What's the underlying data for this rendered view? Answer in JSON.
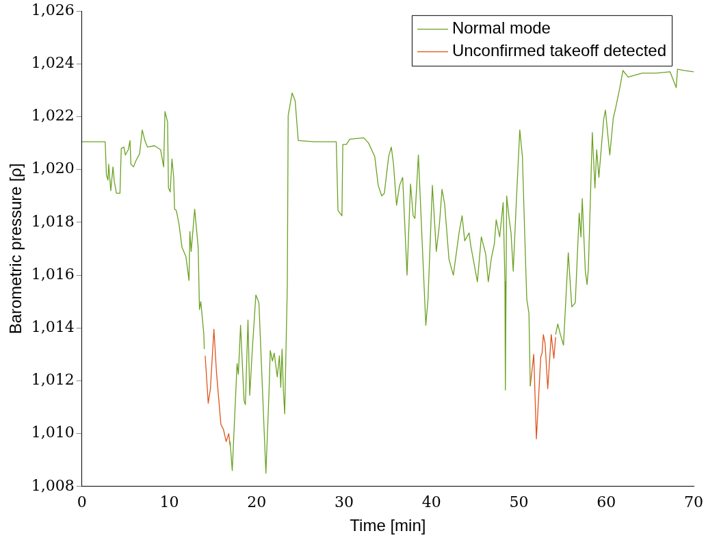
{
  "chart_data": {
    "type": "line",
    "xlabel": "Time [min]",
    "ylabel": "Barometric pressure [ρ]",
    "xlim": [
      0,
      70
    ],
    "xticks": [
      0,
      10,
      20,
      30,
      40,
      50,
      60,
      70
    ],
    "ylim": [
      1008,
      1026
    ],
    "yticks": [
      {
        "value": 1008,
        "label": "1,008"
      },
      {
        "value": 1010,
        "label": "1,010"
      },
      {
        "value": 1012,
        "label": "1,012"
      },
      {
        "value": 1014,
        "label": "1,014"
      },
      {
        "value": 1016,
        "label": "1,016"
      },
      {
        "value": 1018,
        "label": "1,018"
      },
      {
        "value": 1020,
        "label": "1,020"
      },
      {
        "value": 1022,
        "label": "1,022"
      },
      {
        "value": 1024,
        "label": "1,024"
      },
      {
        "value": 1026,
        "label": "1,026"
      }
    ],
    "grid": false,
    "legend": "top right",
    "marker": "none",
    "line_style": "solid",
    "series": [
      {
        "name": "Normal mode",
        "color": "#6aa121",
        "x": [
          0,
          2.66,
          2.8,
          2.98,
          3.06,
          3.3,
          3.55,
          3.7,
          3.95,
          4.35,
          4.5,
          4.8,
          4.97,
          5.3,
          5.5,
          5.6,
          5.9,
          6.2,
          6.6,
          6.9,
          7.2,
          7.5,
          8.3,
          9.0,
          9.35,
          9.5,
          9.8,
          9.9,
          10.1,
          10.3,
          10.5,
          10.6,
          10.8,
          11.1,
          11.45,
          11.9,
          12.25,
          12.35,
          12.5,
          12.9,
          13.3,
          13.45,
          13.6,
          13.95,
          14.0,
          14.05,
          16.95,
          17.2,
          17.75,
          17.9,
          18.15,
          18.55,
          18.7,
          19.0,
          19.2,
          19.5,
          19.9,
          20.25,
          21.05,
          21.4,
          21.55,
          21.8,
          22.0,
          22.35,
          22.6,
          22.75,
          22.9,
          23.05,
          23.2,
          23.5,
          23.6,
          24.05,
          24.4,
          24.75,
          26.6,
          28.6,
          29.1,
          29.3,
          29.75,
          29.85,
          30.25,
          30.65,
          32.25,
          32.8,
          33.5,
          33.9,
          34.3,
          34.6,
          35.1,
          35.4,
          35.65,
          36.0,
          36.35,
          36.7,
          37.2,
          37.6,
          37.9,
          38.1,
          38.5,
          38.8,
          39.35,
          39.6,
          40.1,
          40.55,
          40.9,
          41.2,
          41.5,
          42.0,
          42.5,
          42.7,
          43.15,
          43.5,
          43.8,
          44.3,
          44.5,
          45.25,
          45.7,
          46.2,
          46.5,
          46.85,
          47.2,
          47.4,
          47.8,
          48.2,
          48.4,
          48.45,
          48.6,
          48.9,
          49.1,
          49.35,
          49.7,
          50.1,
          50.4,
          50.65,
          50.9,
          51.15,
          51.3,
          51.35,
          54.2,
          54.45,
          54.75,
          55.1,
          55.65,
          56.05,
          56.45,
          56.9,
          57.1,
          57.25,
          57.6,
          57.8,
          57.95,
          58.4,
          58.7,
          58.9,
          59.15,
          59.7,
          59.9,
          60.4,
          60.8,
          61.05,
          61.55,
          61.9,
          62.5,
          64.1,
          65.7,
          67.3,
          68.0,
          68.15,
          68.95,
          70
        ],
        "values": [
          1021.05,
          1021.05,
          1019.8,
          1019.6,
          1020.2,
          1019.2,
          1020.1,
          1019.55,
          1019.1,
          1019.1,
          1020.8,
          1020.85,
          1020.55,
          1020.75,
          1021.1,
          1020.2,
          1020.1,
          1020.35,
          1020.6,
          1021.5,
          1021.1,
          1020.85,
          1020.9,
          1020.75,
          1020.1,
          1022.2,
          1021.8,
          1019.3,
          1019.15,
          1020.4,
          1019.7,
          1018.5,
          1018.45,
          1017.95,
          1017.05,
          1016.7,
          1015.8,
          1017.65,
          1016.9,
          1018.5,
          1017.05,
          1014.7,
          1015,
          1013.75,
          1013.2,
          null,
          1009.7,
          1008.6,
          1012.65,
          1012.25,
          1014.1,
          1011.25,
          1011.1,
          1014.3,
          1011.45,
          1013.2,
          1015.25,
          1014.95,
          1008.5,
          1011.5,
          1013.15,
          1012.75,
          1013.05,
          1012.15,
          1012.95,
          1011.75,
          1013.2,
          1011.65,
          1010.75,
          1015.6,
          1022.05,
          1022.9,
          1022.6,
          1021.1,
          1021.05,
          1021.05,
          1021.05,
          1018.45,
          1018.25,
          1020.95,
          1020.95,
          1021.15,
          1021.2,
          1021,
          1020.5,
          1019.4,
          1019,
          1019.1,
          1020.5,
          1020.85,
          1020.2,
          1018.65,
          1019.4,
          1019.7,
          1016,
          1019.45,
          1018.25,
          1018.15,
          1020.55,
          1018.25,
          1014.1,
          1015.1,
          1019.4,
          1016.9,
          1017.9,
          1019.25,
          1018.7,
          1016.6,
          1016,
          1016.5,
          1017.6,
          1018.25,
          1017.3,
          1017.6,
          1017.1,
          1015.75,
          1017.45,
          1016.8,
          1015.75,
          1016.65,
          1017.2,
          1018.1,
          1017.45,
          1018.75,
          1015.75,
          1011.65,
          1019,
          1018.1,
          1017.6,
          1016.15,
          1018.75,
          1021.5,
          1020.5,
          1017.7,
          1015.1,
          1014.55,
          1011.8,
          null,
          1013.75,
          1014.15,
          1013.75,
          1013.35,
          1016.85,
          1014.8,
          1014.95,
          1018.35,
          1017.45,
          1018.9,
          1016.15,
          1015.65,
          1016.25,
          1021.4,
          1019.3,
          1020.75,
          1019.7,
          1021.9,
          1022.25,
          1020.55,
          1021.95,
          1022.3,
          1023.1,
          1023.75,
          1023.5,
          1023.65,
          1023.65,
          1023.7,
          1023.1,
          1023.8,
          1023.75,
          1023.7
        ]
      },
      {
        "name": "Unconfirmed takeoff detected",
        "color": "#e0521b",
        "x": [
          14.1,
          14.45,
          14.7,
          15.1,
          15.4,
          15.9,
          16.2,
          16.5,
          16.8,
          16.95,
          17.0,
          51.3,
          51.7,
          52.0,
          52.5,
          52.65,
          52.8,
          53.0,
          53.3,
          53.7,
          54.0,
          54.2
        ],
        "values": [
          1012.95,
          1011.15,
          1011.7,
          1013.95,
          1012.3,
          1010.35,
          1010.15,
          1009.7,
          1010,
          1009.55,
          null,
          1011.8,
          1013,
          1009.8,
          1012.9,
          1013.05,
          1013.75,
          1013.4,
          1011.7,
          1013.75,
          1012.85,
          1013.65
        ]
      }
    ]
  }
}
